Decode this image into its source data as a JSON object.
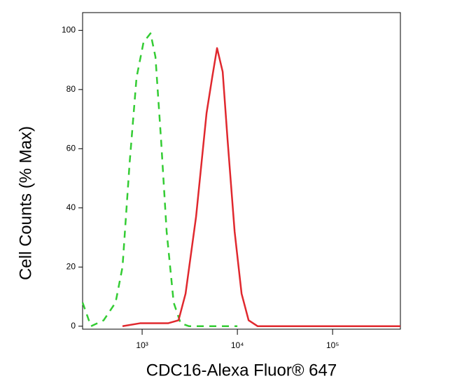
{
  "chart_data": {
    "type": "line",
    "xscale": "log",
    "xlabel": "CDC16-Alexa Fluor® 647",
    "ylabel": "Cell Counts (% Max)",
    "xlim": [
      237,
      515000
    ],
    "ylim": [
      -1,
      106
    ],
    "xticks": [
      {
        "value": 1000,
        "label": "10³"
      },
      {
        "value": 10000,
        "label": "10⁴"
      },
      {
        "value": 100000,
        "label": "10⁵"
      }
    ],
    "yticks": [
      0,
      20,
      40,
      60,
      80,
      100
    ],
    "series": [
      {
        "color": "#33cc33",
        "dashed": true,
        "x": [
          237,
          290,
          394,
          526,
          622,
          738,
          873,
          1034,
          1225,
          1380,
          1580,
          1808,
          2143,
          2536,
          3110,
          10000
        ],
        "values": [
          8,
          0,
          2,
          8,
          20,
          55,
          84,
          96,
          99,
          91,
          63,
          32,
          8,
          1,
          0,
          0
        ]
      },
      {
        "color": "#e0282e",
        "dashed": false,
        "x": [
          622,
          950,
          1871,
          2410,
          2857,
          3683,
          4745,
          5433,
          6118,
          7010,
          7889,
          9355,
          11070,
          13120,
          16340,
          515000
        ],
        "values": [
          0,
          1,
          1,
          2,
          11,
          37,
          72,
          84,
          94,
          86,
          63,
          32,
          11,
          2,
          0,
          0
        ]
      }
    ]
  }
}
